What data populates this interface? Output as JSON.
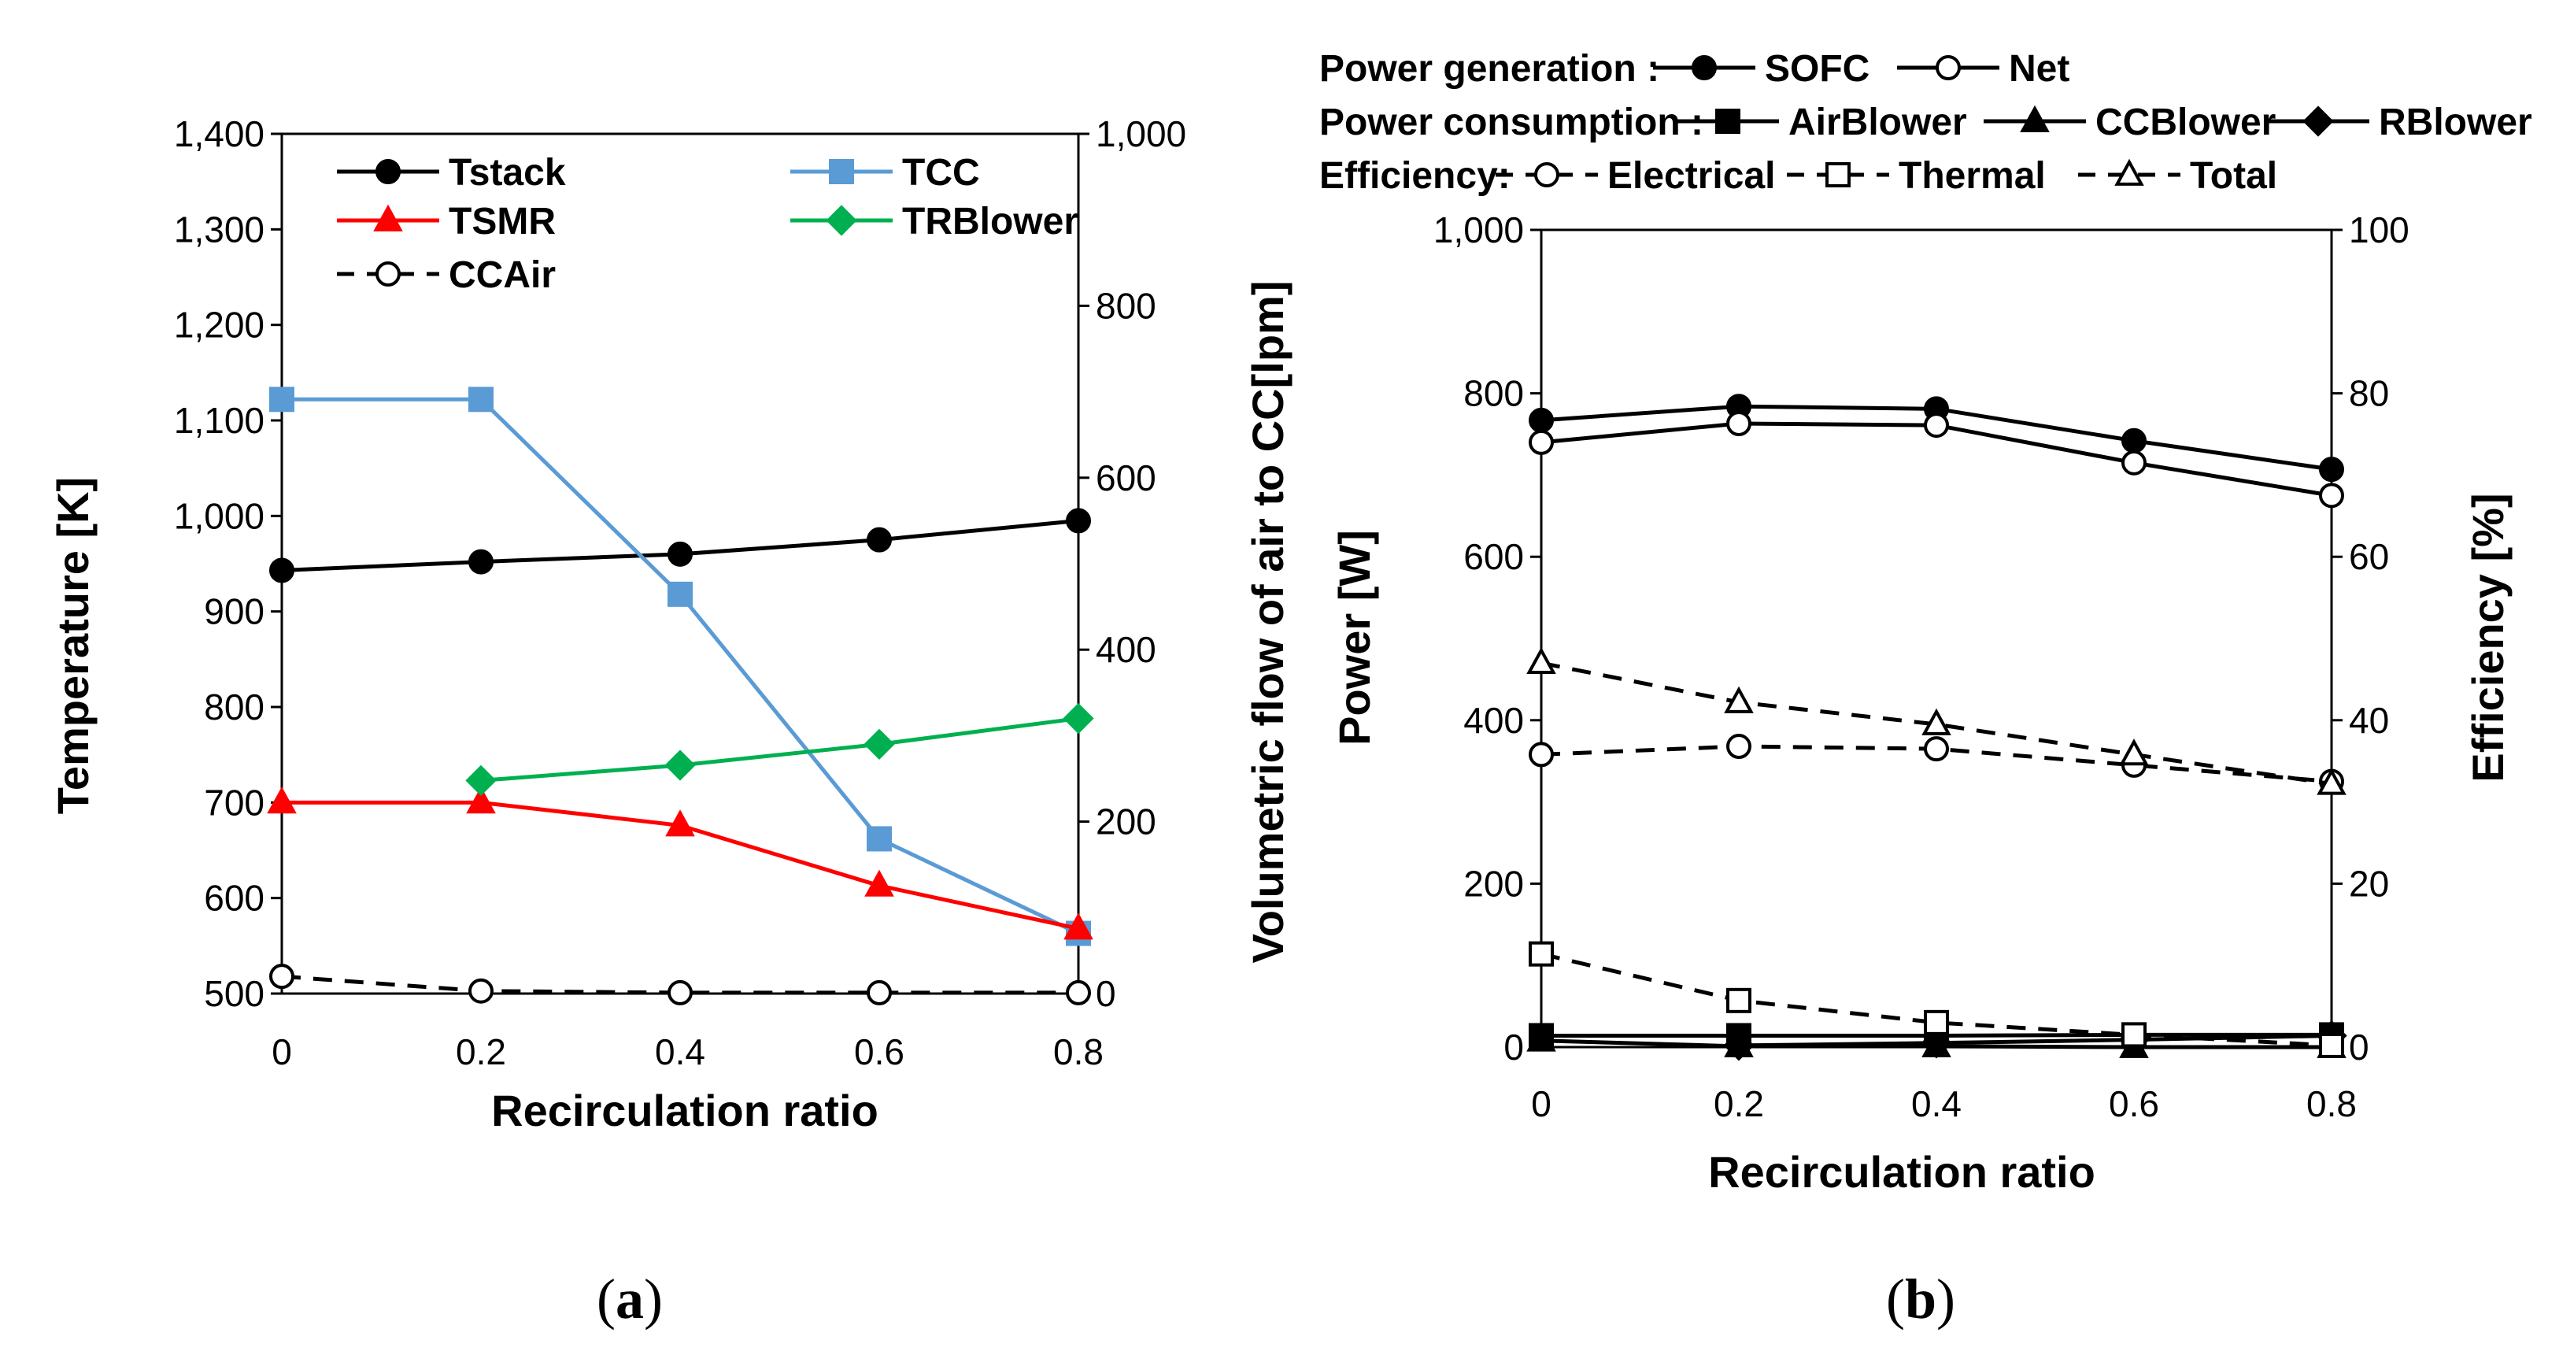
{
  "colors": {
    "black": "#000000",
    "blue": "#5b9bd5",
    "red": "#ff0000",
    "green": "#00b050"
  },
  "chart_data": [
    {
      "type": "line",
      "panel_label": "a",
      "xlabel": "Recirculation ratio",
      "ylabel": "Temperature [K]",
      "y2label": "Volumetric flow of air to CC[lpm]",
      "x": [
        0,
        0.2,
        0.4,
        0.6,
        0.8
      ],
      "x_tick_labels": [
        "0",
        "0.2",
        "0.4",
        "0.6",
        "0.8"
      ],
      "ylim": [
        500,
        1400
      ],
      "y_tick_labels": [
        "500",
        "600",
        "700",
        "800",
        "900",
        "1,000",
        "1,100",
        "1,200",
        "1,300",
        "1,400"
      ],
      "y2lim": [
        0,
        1000
      ],
      "y2_tick_labels": [
        "0",
        "200",
        "400",
        "600",
        "800",
        "1,000"
      ],
      "legend_position": "top",
      "series": [
        {
          "name": "Tstack",
          "axis": "left",
          "color": "#000000",
          "marker": "circle",
          "filled": true,
          "dash": false,
          "values": [
            943,
            952,
            960,
            975,
            995
          ]
        },
        {
          "name": "TCC",
          "axis": "left",
          "color": "#5b9bd5",
          "marker": "square",
          "filled": true,
          "dash": false,
          "values": [
            1122,
            1122,
            918,
            662,
            563
          ]
        },
        {
          "name": "TSMR",
          "axis": "left",
          "color": "#ff0000",
          "marker": "triangle",
          "filled": true,
          "dash": false,
          "values": [
            700,
            700,
            676,
            613,
            568
          ]
        },
        {
          "name": "TRBlower",
          "axis": "left",
          "color": "#00b050",
          "marker": "diamond",
          "filled": true,
          "dash": false,
          "values": [
            null,
            723,
            739,
            761,
            788
          ]
        },
        {
          "name": "CCAir",
          "axis": "right",
          "color": "#000000",
          "marker": "circle",
          "filled": false,
          "dash": true,
          "values": [
            20,
            3,
            1,
            1,
            1
          ]
        }
      ]
    },
    {
      "type": "line",
      "panel_label": "b",
      "xlabel": "Recirculation ratio",
      "ylabel": "Power [W]",
      "y2label": "Efficiency [%]",
      "x": [
        0,
        0.2,
        0.4,
        0.6,
        0.8
      ],
      "x_tick_labels": [
        "0",
        "0.2",
        "0.4",
        "0.6",
        "0.8"
      ],
      "ylim": [
        0,
        1000
      ],
      "y_tick_labels": [
        "0",
        "200",
        "400",
        "600",
        "800",
        "1,000"
      ],
      "y2lim": [
        0,
        100
      ],
      "y2_tick_labels": [
        "0",
        "20",
        "40",
        "60",
        "80",
        "100"
      ],
      "legend_position": "top",
      "legend_groups": {
        "generation": "Power generation :",
        "consumption": "Power consumption :",
        "efficiency": "Efficiency:"
      },
      "series": [
        {
          "name": "SOFC",
          "group": "generation",
          "axis": "left",
          "color": "#000000",
          "marker": "circle",
          "filled": true,
          "dash": false,
          "values": [
            767,
            784,
            781,
            742,
            707
          ]
        },
        {
          "name": "Net",
          "group": "generation",
          "axis": "left",
          "color": "#000000",
          "marker": "circle",
          "filled": false,
          "dash": false,
          "values": [
            740,
            763,
            761,
            715,
            675
          ]
        },
        {
          "name": "AirBlower",
          "group": "consumption",
          "axis": "left",
          "color": "#000000",
          "marker": "square",
          "filled": true,
          "dash": false,
          "values": [
            14,
            14,
            14,
            15,
            15
          ]
        },
        {
          "name": "CCBlower",
          "group": "consumption",
          "axis": "left",
          "color": "#000000",
          "marker": "triangle",
          "filled": true,
          "dash": false,
          "values": [
            8,
            1,
            1,
            0,
            0
          ]
        },
        {
          "name": "RBlower",
          "group": "consumption",
          "axis": "left",
          "color": "#000000",
          "marker": "diamond",
          "filled": true,
          "dash": false,
          "values": [
            null,
            2,
            5,
            9,
            14
          ]
        },
        {
          "name": "Electrical",
          "group": "efficiency",
          "axis": "right",
          "color": "#000000",
          "marker": "circle",
          "filled": false,
          "dash": true,
          "values": [
            35.8,
            36.8,
            36.5,
            34.5,
            32.5
          ]
        },
        {
          "name": "Thermal",
          "group": "efficiency",
          "axis": "right",
          "color": "#000000",
          "marker": "square",
          "filled": false,
          "dash": true,
          "values": [
            11.4,
            5.7,
            3.0,
            1.5,
            0.2
          ]
        },
        {
          "name": "Total",
          "group": "efficiency",
          "axis": "right",
          "color": "#000000",
          "marker": "triangle",
          "filled": false,
          "dash": true,
          "values": [
            47,
            42.2,
            39.5,
            35.8,
            32.2
          ]
        }
      ]
    }
  ]
}
